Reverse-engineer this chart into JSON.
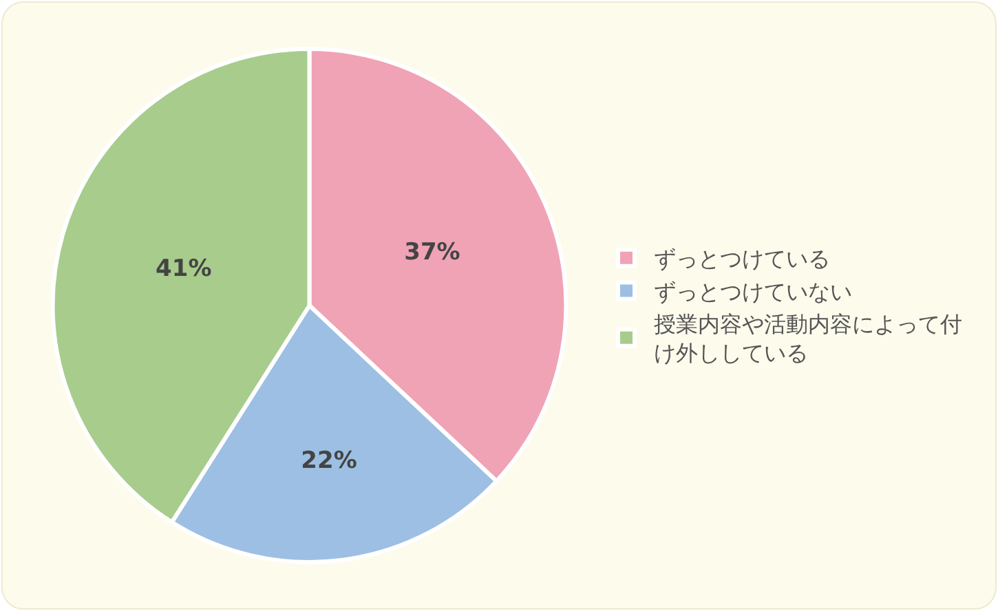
{
  "chart_data": {
    "type": "pie",
    "categories": [
      "ずっとつけている",
      "ずっとつけていない",
      "授業内容や活動内容によって付け外ししている"
    ],
    "values": [
      37,
      22,
      41
    ],
    "colors": [
      "#f0a3b5",
      "#9dbfe3",
      "#a8cc8c"
    ],
    "value_labels": [
      "37%",
      "22%",
      "41%"
    ],
    "legend": "right"
  }
}
